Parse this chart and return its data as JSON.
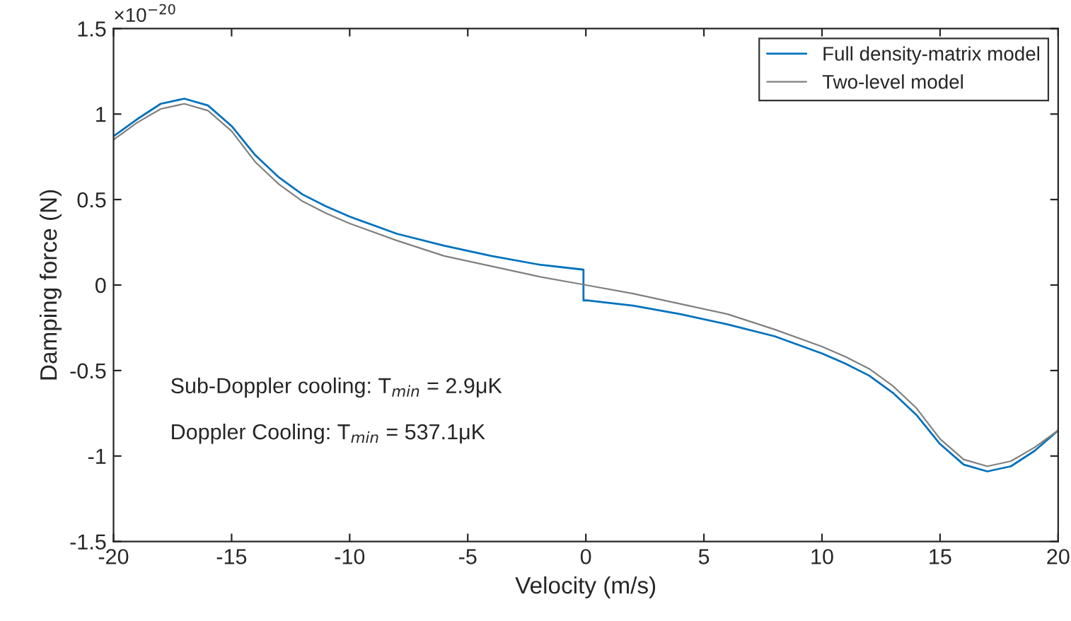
{
  "chart_data": {
    "type": "line",
    "xlabel": "Velocity (m/s)",
    "ylabel": "Damping force (N)",
    "xlim": [
      -20,
      20
    ],
    "xticks": [
      -20,
      -15,
      -10,
      -5,
      0,
      5,
      10,
      15,
      20
    ],
    "ylim": [
      -1.5,
      1.5
    ],
    "yticks": [
      -1.5,
      -1,
      -0.5,
      0,
      0.5,
      1,
      1.5
    ],
    "grid": false,
    "legend": "top right",
    "line_style": "solid",
    "marker": "none",
    "annotations": [
      "×10$^{−20}$",
      "Sub-Doppler cooling: T$_{min}$ = 2.9μK",
      "Doppler Cooling: T$_{min}$ = 537.1μK"
    ],
    "series": [
      {
        "name": "Full density-matrix model",
        "color": "#0072bd",
        "x": [
          -20,
          -19,
          -18,
          -17,
          -16,
          -15,
          -14,
          -13,
          -12,
          -11,
          -10,
          -8,
          -6,
          -4,
          -2,
          -0.1,
          -0.1,
          0.1,
          2,
          4,
          6,
          8,
          10,
          11,
          12,
          13,
          14,
          15,
          16,
          17,
          18,
          19,
          20
        ],
        "values": [
          0.87,
          0.97,
          1.06,
          1.09,
          1.05,
          0.93,
          0.76,
          0.63,
          0.53,
          0.46,
          0.4,
          0.3,
          0.23,
          0.17,
          0.12,
          0.09,
          -0.09,
          -0.09,
          -0.12,
          -0.17,
          -0.23,
          -0.3,
          -0.4,
          -0.46,
          -0.53,
          -0.63,
          -0.76,
          -0.93,
          -1.05,
          -1.09,
          -1.06,
          -0.97,
          -0.85
        ]
      },
      {
        "name": "Two-level model",
        "color": "#808080",
        "x": [
          -20,
          -19,
          -18,
          -17,
          -16,
          -15,
          -14,
          -13,
          -12,
          -11,
          -10,
          -8,
          -6,
          -4,
          -2,
          0,
          2,
          4,
          6,
          8,
          10,
          11,
          12,
          13,
          14,
          15,
          16,
          17,
          18,
          19,
          20
        ],
        "values": [
          0.85,
          0.95,
          1.03,
          1.06,
          1.02,
          0.9,
          0.72,
          0.59,
          0.49,
          0.42,
          0.36,
          0.26,
          0.17,
          0.11,
          0.05,
          0,
          -0.05,
          -0.11,
          -0.17,
          -0.26,
          -0.36,
          -0.42,
          -0.49,
          -0.59,
          -0.72,
          -0.9,
          -1.02,
          -1.06,
          -1.03,
          -0.95,
          -0.85
        ]
      }
    ]
  }
}
